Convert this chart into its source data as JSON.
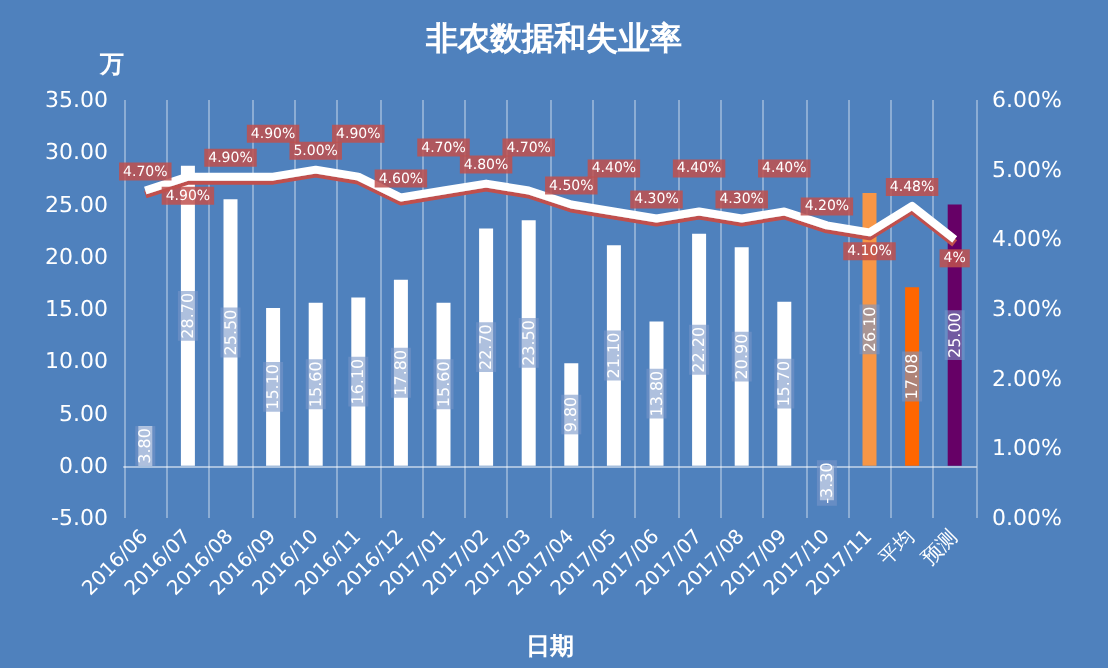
{
  "chart_data": {
    "type": "bar",
    "title": "非农数据和失业率",
    "xlabel": "日期",
    "ylabel": "万",
    "categories": [
      "2016/06",
      "2016/07",
      "2016/08",
      "2016/09",
      "2016/10",
      "2016/11",
      "2016/12",
      "2017/01",
      "2017/02",
      "2017/03",
      "2017/04",
      "2017/05",
      "2017/06",
      "2017/07",
      "2017/08",
      "2017/09",
      "2017/10",
      "2017/11",
      "平均",
      "预测"
    ],
    "series": [
      {
        "values": [
          3.8,
          28.7,
          25.5,
          15.1,
          15.6,
          16.1,
          17.8,
          15.6,
          22.7,
          23.5,
          9.8,
          21.1,
          13.8,
          22.2,
          20.9,
          15.7,
          -3.3,
          26.1,
          17.08,
          25.0
        ],
        "colors": [
          "#ffffff",
          "#ffffff",
          "#ffffff",
          "#ffffff",
          "#ffffff",
          "#ffffff",
          "#ffffff",
          "#ffffff",
          "#ffffff",
          "#ffffff",
          "#ffffff",
          "#ffffff",
          "#ffffff",
          "#ffffff",
          "#ffffff",
          "#ffffff",
          "#ffffff",
          "#f79646",
          "#ff6600",
          "#660066"
        ],
        "value_labels": [
          "3.80",
          "28.70",
          "25.50",
          "15.10",
          "15.60",
          "16.10",
          "17.80",
          "15.60",
          "22.70",
          "23.50",
          "9.80",
          "21.10",
          "13.80",
          "22.20",
          "20.90",
          "15.70",
          "-3.30",
          "26.10",
          "17.08",
          "25.00"
        ]
      },
      {
        "type": "line",
        "axis": "y2",
        "color": "#ffffff",
        "values": [
          4.7,
          4.9,
          4.9,
          4.9,
          5.0,
          4.9,
          4.6,
          4.7,
          4.8,
          4.7,
          4.5,
          4.4,
          4.3,
          4.4,
          4.3,
          4.4,
          4.2,
          4.1,
          4.48,
          4
        ],
        "value_labels": [
          "4.70%",
          "4.90%",
          "4.90%",
          "4.90%",
          "5.00%",
          "4.90%",
          "4.60%",
          "4.70%",
          "4.80%",
          "4.70%",
          "4.50%",
          "4.40%",
          "4.30%",
          "4.40%",
          "4.30%",
          "4.40%",
          "4.20%",
          "4.10%",
          "4.48%",
          "4%"
        ]
      }
    ],
    "ylim": [
      -5,
      35
    ],
    "yticks": [
      {
        "value": -5,
        "label": "-5.00"
      },
      {
        "value": 0,
        "label": "0.00"
      },
      {
        "value": 5,
        "label": "5.00"
      },
      {
        "value": 10,
        "label": "10.00"
      },
      {
        "value": 15,
        "label": "15.00"
      },
      {
        "value": 20,
        "label": "20.00"
      },
      {
        "value": 25,
        "label": "25.00"
      },
      {
        "value": 30,
        "label": "30.00"
      },
      {
        "value": 35,
        "label": "35.00"
      }
    ],
    "y2lim": [
      0,
      6
    ],
    "y2ticks": [
      {
        "value": 0,
        "label": "0.00%"
      },
      {
        "value": 1,
        "label": "1.00%"
      },
      {
        "value": 2,
        "label": "2.00%"
      },
      {
        "value": 3,
        "label": "3.00%"
      },
      {
        "value": 4,
        "label": "4.00%"
      },
      {
        "value": 5,
        "label": "5.00%"
      },
      {
        "value": 6,
        "label": "6.00%"
      }
    ],
    "grid": "x",
    "marker": "none"
  }
}
